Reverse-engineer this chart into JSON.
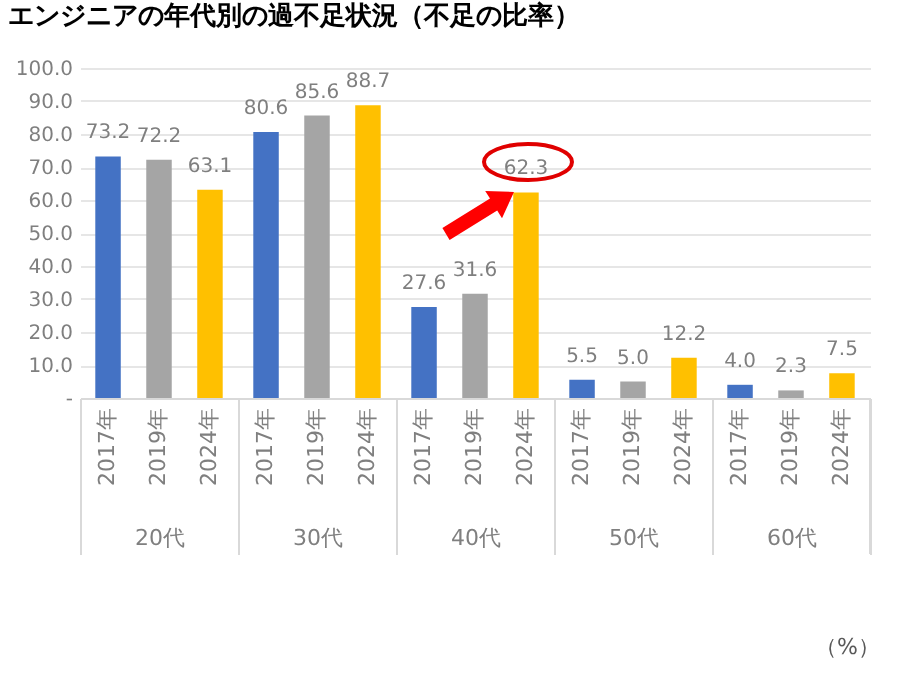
{
  "chart_data": {
    "type": "bar",
    "title": "エンジニアの年代別の過不足状況（不足の比率）",
    "categories": [
      "20代",
      "30代",
      "40代",
      "50代",
      "60代"
    ],
    "series": [
      {
        "name": "2017年",
        "color": "#4472c4",
        "values": [
          73.2,
          80.6,
          27.6,
          5.5,
          4.0
        ],
        "value_labels": [
          "73.2",
          "80.6",
          "27.6",
          "5.5",
          "4.0"
        ]
      },
      {
        "name": "2019年",
        "color": "#a5a5a5",
        "values": [
          72.2,
          85.6,
          31.6,
          5.0,
          2.3
        ],
        "value_labels": [
          "72.2",
          "85.6",
          "31.6",
          "5.0",
          "2.3"
        ]
      },
      {
        "name": "2024年",
        "color": "#ffc000",
        "values": [
          63.1,
          88.7,
          62.3,
          12.2,
          7.5
        ],
        "value_labels": [
          "63.1",
          "88.7",
          "62.3",
          "12.2",
          "7.5"
        ]
      }
    ],
    "ylim": [
      0,
      100
    ],
    "yticks": [
      {
        "value": 0,
        "label": "-"
      },
      {
        "value": 10,
        "label": "10.0"
      },
      {
        "value": 20,
        "label": "20.0"
      },
      {
        "value": 30,
        "label": "30.0"
      },
      {
        "value": 40,
        "label": "40.0"
      },
      {
        "value": 50,
        "label": "50.0"
      },
      {
        "value": 60,
        "label": "60.0"
      },
      {
        "value": 70,
        "label": "70.0"
      },
      {
        "value": 80,
        "label": "80.0"
      },
      {
        "value": 90,
        "label": "90.0"
      },
      {
        "value": 100,
        "label": "100.0"
      }
    ],
    "grid": "y",
    "annotations": [
      "（%）"
    ]
  }
}
